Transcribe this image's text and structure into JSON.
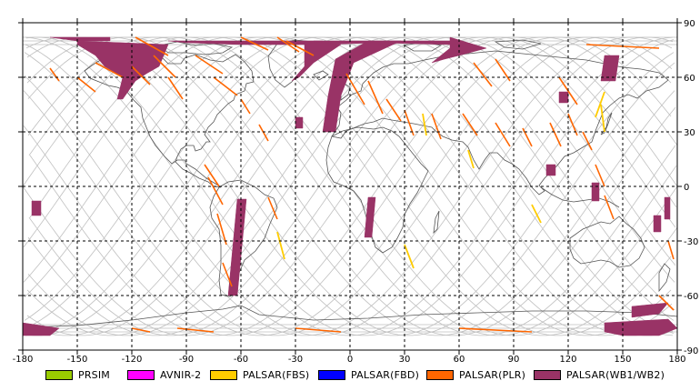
{
  "map": {
    "lon_ticks": [
      "-180",
      "-150",
      "-120",
      "-90",
      "-60",
      "-30",
      "0",
      "30",
      "60",
      "90",
      "120",
      "150",
      "180"
    ],
    "lat_ticks": [
      "90",
      "60",
      "30",
      "0",
      "-30",
      "-60",
      "-90"
    ],
    "lon_range": [
      -180,
      180
    ],
    "lat_range": [
      -90,
      90
    ],
    "grid": "dashed",
    "colors": {
      "coastline": "#555555",
      "orbit_tracks": "#bfbfbf",
      "grid": "#000000"
    }
  },
  "legend": {
    "placement": "bottom",
    "items": [
      {
        "label": "PRSIM",
        "color": "#99cc00"
      },
      {
        "label": "AVNIR-2",
        "color": "#ff00ff"
      },
      {
        "label": "PALSAR(FBS)",
        "color": "#ffcc00"
      },
      {
        "label": "PALSAR(FBD)",
        "color": "#0000ff"
      },
      {
        "label": "PALSAR(PLR)",
        "color": "#ff6600"
      },
      {
        "label": "PALSAR(WB1/WB2)",
        "color": "#993366"
      }
    ]
  },
  "coverage": {
    "wb_polygons": [
      [
        [
          -150,
          80
        ],
        [
          -100,
          78
        ],
        [
          -105,
          66
        ],
        [
          -112,
          62
        ],
        [
          -118,
          58
        ],
        [
          -125,
          48
        ],
        [
          -128,
          48
        ],
        [
          -125,
          60
        ],
        [
          -135,
          66
        ],
        [
          -140,
          72
        ],
        [
          -150,
          78
        ]
      ],
      [
        [
          -132,
          82
        ],
        [
          -165,
          82
        ],
        [
          -150,
          80
        ],
        [
          -132,
          80
        ]
      ],
      [
        [
          -100,
          80
        ],
        [
          -15,
          80
        ],
        [
          -20,
          78
        ],
        [
          -60,
          78
        ],
        [
          -90,
          79
        ]
      ],
      [
        [
          -20,
          80
        ],
        [
          60,
          80
        ],
        [
          55,
          78
        ],
        [
          15,
          79
        ],
        [
          -15,
          78
        ]
      ],
      [
        [
          -25,
          80
        ],
        [
          -5,
          78
        ],
        [
          -20,
          68
        ],
        [
          -28,
          60
        ],
        [
          -32,
          58
        ],
        [
          -25,
          66
        ]
      ],
      [
        [
          28,
          80
        ],
        [
          10,
          80
        ],
        [
          -8,
          70
        ],
        [
          -12,
          50
        ],
        [
          -15,
          30
        ],
        [
          -8,
          30
        ],
        [
          -5,
          50
        ],
        [
          2,
          68
        ]
      ],
      [
        [
          55,
          82
        ],
        [
          75,
          76
        ],
        [
          60,
          72
        ],
        [
          52,
          70
        ],
        [
          45,
          68
        ],
        [
          55,
          76
        ]
      ],
      [
        [
          -62,
          -7
        ],
        [
          -57,
          -7
        ],
        [
          -62,
          -60
        ],
        [
          -67,
          -60
        ]
      ],
      [
        [
          10,
          -6
        ],
        [
          14,
          -6
        ],
        [
          12,
          -28
        ],
        [
          8,
          -28
        ]
      ],
      [
        [
          -175,
          -8
        ],
        [
          -170,
          -8
        ],
        [
          -170,
          -16
        ],
        [
          -175,
          -16
        ]
      ],
      [
        [
          -30,
          38
        ],
        [
          -26,
          38
        ],
        [
          -26,
          32
        ],
        [
          -30,
          32
        ]
      ],
      [
        [
          140,
          72
        ],
        [
          148,
          72
        ],
        [
          146,
          58
        ],
        [
          138,
          58
        ]
      ],
      [
        [
          115,
          52
        ],
        [
          120,
          52
        ],
        [
          120,
          46
        ],
        [
          115,
          46
        ]
      ],
      [
        [
          108,
          12
        ],
        [
          113,
          12
        ],
        [
          113,
          6
        ],
        [
          108,
          6
        ]
      ],
      [
        [
          133,
          2
        ],
        [
          137,
          2
        ],
        [
          137,
          -8
        ],
        [
          133,
          -8
        ]
      ],
      [
        [
          167,
          -16
        ],
        [
          171,
          -16
        ],
        [
          171,
          -25
        ],
        [
          167,
          -25
        ]
      ],
      [
        [
          173,
          -6
        ],
        [
          176,
          -6
        ],
        [
          176,
          -18
        ],
        [
          173,
          -18
        ]
      ],
      [
        [
          -180,
          -75
        ],
        [
          -160,
          -78
        ],
        [
          -165,
          -82
        ],
        [
          -180,
          -82
        ]
      ],
      [
        [
          140,
          -75
        ],
        [
          175,
          -73
        ],
        [
          180,
          -78
        ],
        [
          170,
          -82
        ],
        [
          150,
          -82
        ],
        [
          140,
          -80
        ]
      ],
      [
        [
          155,
          -66
        ],
        [
          175,
          -64
        ],
        [
          170,
          -70
        ],
        [
          155,
          -72
        ]
      ]
    ],
    "plr_lines": [
      [
        [
          -60,
          82
        ],
        [
          -45,
          75
        ]
      ],
      [
        [
          -40,
          82
        ],
        [
          -28,
          74
        ]
      ],
      [
        [
          -35,
          80
        ],
        [
          -20,
          72
        ]
      ],
      [
        [
          -118,
          82
        ],
        [
          -100,
          72
        ]
      ],
      [
        [
          -165,
          65
        ],
        [
          -160,
          58
        ]
      ],
      [
        [
          -140,
          68
        ],
        [
          -125,
          60
        ]
      ],
      [
        [
          -150,
          60
        ],
        [
          -140,
          52
        ]
      ],
      [
        [
          -108,
          72
        ],
        [
          -96,
          60
        ]
      ],
      [
        [
          -120,
          66
        ],
        [
          -110,
          56
        ]
      ],
      [
        [
          -100,
          60
        ],
        [
          -92,
          48
        ]
      ],
      [
        [
          -85,
          72
        ],
        [
          -70,
          62
        ]
      ],
      [
        [
          -75,
          60
        ],
        [
          -62,
          50
        ]
      ],
      [
        [
          -60,
          48
        ],
        [
          -55,
          40
        ]
      ],
      [
        [
          -50,
          34
        ],
        [
          -45,
          25
        ]
      ],
      [
        [
          -80,
          12
        ],
        [
          -72,
          0
        ]
      ],
      [
        [
          -78,
          5
        ],
        [
          -70,
          -10
        ]
      ],
      [
        [
          -73,
          -15
        ],
        [
          -68,
          -32
        ]
      ],
      [
        [
          -70,
          -42
        ],
        [
          -65,
          -55
        ]
      ],
      [
        [
          -45,
          -6
        ],
        [
          -40,
          -18
        ]
      ],
      [
        [
          -2,
          62
        ],
        [
          8,
          45
        ]
      ],
      [
        [
          10,
          58
        ],
        [
          18,
          40
        ]
      ],
      [
        [
          20,
          48
        ],
        [
          28,
          36
        ]
      ],
      [
        [
          30,
          42
        ],
        [
          35,
          28
        ]
      ],
      [
        [
          45,
          40
        ],
        [
          50,
          26
        ]
      ],
      [
        [
          62,
          40
        ],
        [
          70,
          28
        ]
      ],
      [
        [
          80,
          35
        ],
        [
          88,
          22
        ]
      ],
      [
        [
          95,
          32
        ],
        [
          100,
          22
        ]
      ],
      [
        [
          110,
          35
        ],
        [
          116,
          22
        ]
      ],
      [
        [
          120,
          40
        ],
        [
          125,
          28
        ]
      ],
      [
        [
          128,
          30
        ],
        [
          133,
          20
        ]
      ],
      [
        [
          135,
          12
        ],
        [
          140,
          0
        ]
      ],
      [
        [
          140,
          -5
        ],
        [
          145,
          -18
        ]
      ],
      [
        [
          175,
          -30
        ],
        [
          178,
          -40
        ]
      ],
      [
        [
          115,
          60
        ],
        [
          125,
          45
        ]
      ],
      [
        [
          80,
          70
        ],
        [
          88,
          58
        ]
      ],
      [
        [
          68,
          68
        ],
        [
          78,
          55
        ]
      ],
      [
        [
          -95,
          -78
        ],
        [
          -75,
          -80
        ]
      ],
      [
        [
          -30,
          -78
        ],
        [
          -5,
          -80
        ]
      ],
      [
        [
          60,
          -78
        ],
        [
          100,
          -80
        ]
      ],
      [
        [
          -120,
          -78
        ],
        [
          -110,
          -80
        ]
      ],
      [
        [
          170,
          -60
        ],
        [
          178,
          -68
        ]
      ],
      [
        [
          130,
          78
        ],
        [
          170,
          76
        ]
      ]
    ],
    "fbs_lines": [
      [
        [
          40,
          40
        ],
        [
          42,
          28
        ]
      ],
      [
        [
          30,
          -32
        ],
        [
          35,
          -45
        ]
      ],
      [
        [
          140,
          30
        ],
        [
          138,
          45
        ]
      ],
      [
        [
          135,
          38
        ],
        [
          140,
          52
        ]
      ],
      [
        [
          100,
          -10
        ],
        [
          105,
          -20
        ]
      ],
      [
        [
          -40,
          -25
        ],
        [
          -36,
          -40
        ]
      ],
      [
        [
          65,
          20
        ],
        [
          68,
          10
        ]
      ]
    ]
  }
}
